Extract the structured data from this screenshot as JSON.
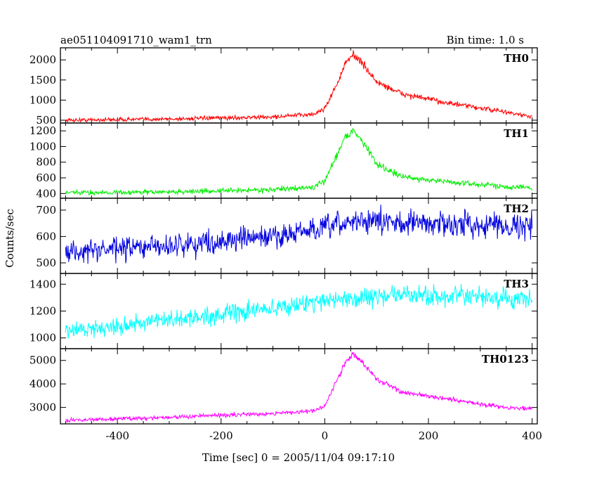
{
  "header": {
    "title": "ae051104091710_wam1_trn",
    "bin_time": "Bin time: 1.0 s"
  },
  "chart_data": {
    "type": "line",
    "xlabel": "Time [sec] 0 = 2005/11/04 09:17:10",
    "ylabel": "Counts/sec",
    "xlim": [
      -510,
      410
    ],
    "x_ticks": [
      -400,
      -200,
      0,
      200,
      400
    ],
    "panels": [
      {
        "name": "TH0",
        "color": "#ff0000",
        "ylim": [
          430,
          2300
        ],
        "y_ticks": [
          500,
          1000,
          1500,
          2000
        ],
        "trend": [
          [
            -500,
            500
          ],
          [
            -300,
            530
          ],
          [
            -100,
            580
          ],
          [
            -20,
            650
          ],
          [
            0,
            800
          ],
          [
            20,
            1300
          ],
          [
            40,
            1900
          ],
          [
            55,
            2150
          ],
          [
            70,
            1950
          ],
          [
            100,
            1450
          ],
          [
            150,
            1150
          ],
          [
            250,
            900
          ],
          [
            350,
            700
          ],
          [
            400,
            580
          ]
        ],
        "noise": 35
      },
      {
        "name": "TH1",
        "color": "#00ee00",
        "ylim": [
          340,
          1300
        ],
        "y_ticks": [
          400,
          600,
          800,
          1000,
          1200
        ],
        "trend": [
          [
            -500,
            410
          ],
          [
            -300,
            420
          ],
          [
            -100,
            450
          ],
          [
            -20,
            480
          ],
          [
            0,
            560
          ],
          [
            20,
            850
          ],
          [
            40,
            1130
          ],
          [
            55,
            1200
          ],
          [
            70,
            1100
          ],
          [
            100,
            780
          ],
          [
            150,
            610
          ],
          [
            250,
            540
          ],
          [
            350,
            490
          ],
          [
            400,
            470
          ]
        ],
        "noise": 22
      },
      {
        "name": "TH2",
        "color": "#0000e0",
        "ylim": [
          460,
          745
        ],
        "y_ticks": [
          500,
          600,
          700
        ],
        "trend": [
          [
            -500,
            540
          ],
          [
            -300,
            565
          ],
          [
            -100,
            600
          ],
          [
            0,
            630
          ],
          [
            60,
            660
          ],
          [
            200,
            650
          ],
          [
            400,
            640
          ]
        ],
        "noise": 30
      },
      {
        "name": "TH3",
        "color": "#00ffff",
        "ylim": [
          920,
          1480
        ],
        "y_ticks": [
          1000,
          1200,
          1400
        ],
        "trend": [
          [
            -500,
            1050
          ],
          [
            -300,
            1130
          ],
          [
            -100,
            1220
          ],
          [
            0,
            1280
          ],
          [
            150,
            1320
          ],
          [
            300,
            1300
          ],
          [
            400,
            1280
          ]
        ],
        "noise": 45
      },
      {
        "name": "TH0123",
        "color": "#ff00ff",
        "ylim": [
          2300,
          5500
        ],
        "y_ticks": [
          3000,
          4000,
          5000
        ],
        "trend": [
          [
            -500,
            2450
          ],
          [
            -300,
            2580
          ],
          [
            -100,
            2750
          ],
          [
            -20,
            2850
          ],
          [
            0,
            3050
          ],
          [
            20,
            4000
          ],
          [
            40,
            4900
          ],
          [
            55,
            5300
          ],
          [
            70,
            5000
          ],
          [
            100,
            4200
          ],
          [
            150,
            3650
          ],
          [
            250,
            3300
          ],
          [
            350,
            3000
          ],
          [
            400,
            2950
          ]
        ],
        "noise": 60
      }
    ]
  }
}
